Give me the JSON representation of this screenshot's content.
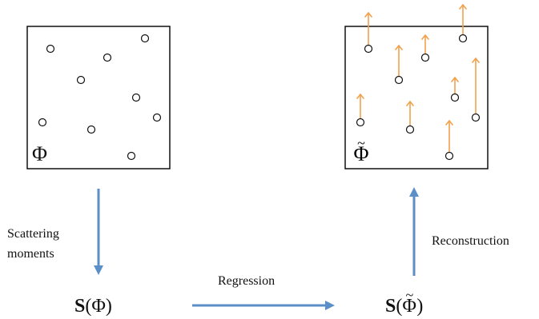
{
  "left_box": {
    "label": "Φ"
  },
  "right_box": {
    "label_tilde": "~",
    "label": "Φ"
  },
  "steps": {
    "scattering_line1": "Scattering",
    "scattering_line2": "moments",
    "regression": "Regression",
    "reconstruction": "Reconstruction"
  },
  "formulas": {
    "s_left_S": "S",
    "s_left_rest": "(Φ)",
    "s_right_S": "S",
    "s_right_open": "(",
    "s_right_tilde": "~",
    "s_right_phi": "Φ",
    "s_right_close": ")"
  },
  "colors": {
    "arrow_blue": "#5b8fc7",
    "arrow_orange": "#f2a04a",
    "box_border": "#111111"
  },
  "icons": {
    "particle": "circle-icon",
    "velocity": "arrow-up-icon"
  }
}
